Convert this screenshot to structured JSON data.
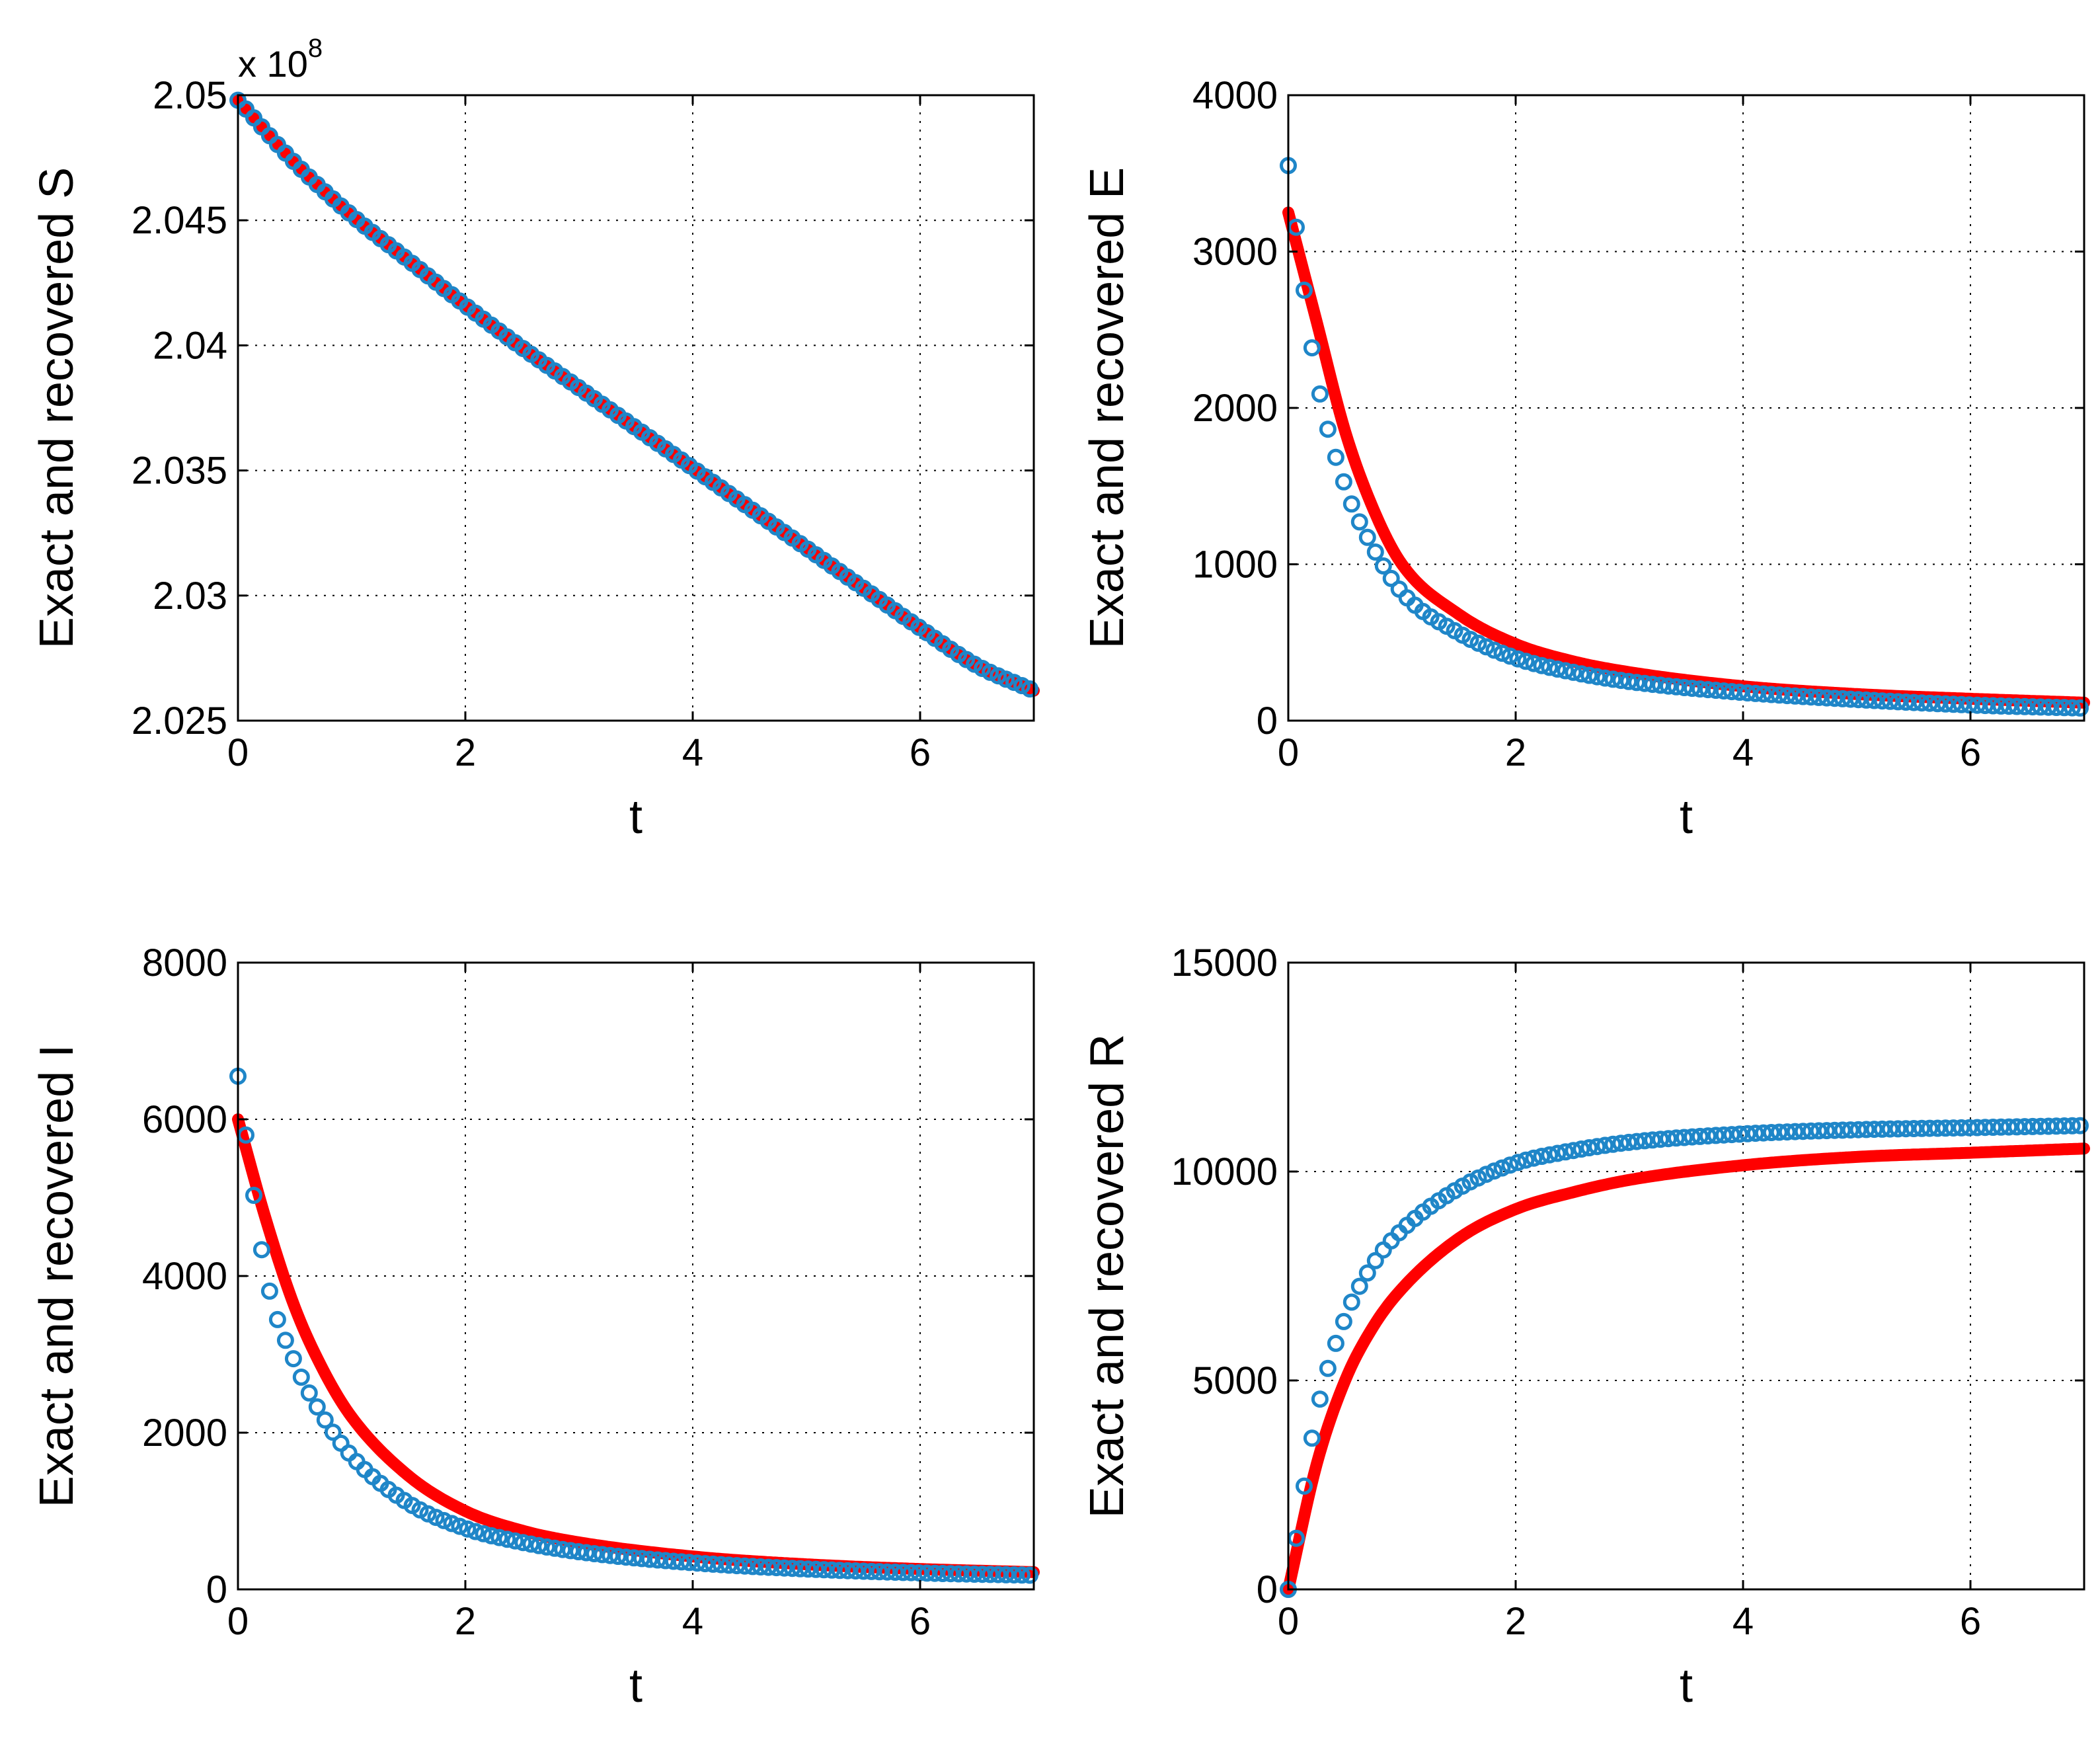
{
  "figure": {
    "background": "#ffffff"
  },
  "colors": {
    "exact": "#ff0000",
    "recovered": "#1f86c8",
    "grid": "#000000",
    "axes": "#000000"
  },
  "chart_data": [
    {
      "type": "line",
      "panel": "top-left",
      "title": "",
      "xlabel": "t",
      "ylabel": "Exact and recovered S",
      "xlim": [
        0,
        7
      ],
      "ylim": [
        2.025,
        2.05
      ],
      "xticks": [
        0,
        2,
        4,
        6
      ],
      "xtick_labels": [
        "0",
        "2",
        "4",
        "6"
      ],
      "yticks": [
        2.025,
        2.03,
        2.035,
        2.04,
        2.045,
        2.05
      ],
      "ytick_labels": [
        "2.025",
        "2.03",
        "2.035",
        "2.04",
        "2.045",
        "2.05"
      ],
      "y_multiplier": {
        "base": "x 10",
        "exponent": "8"
      },
      "grid": true,
      "series": [
        {
          "name": "exact",
          "style": "line",
          "color": "#ff0000",
          "x": [
            0,
            0.5,
            1,
            1.5,
            2,
            2.5,
            3,
            3.5,
            4,
            4.5,
            5,
            5.5,
            6,
            6.5,
            7
          ],
          "y": [
            2.0498,
            2.0473,
            2.0452,
            2.0434,
            2.0416,
            2.0399,
            2.0383,
            2.0367,
            2.0351,
            2.0335,
            2.0319,
            2.0303,
            2.0287,
            2.0272,
            2.0262
          ]
        },
        {
          "name": "recovered",
          "style": "circles",
          "color": "#1f86c8",
          "x": [
            0,
            0.5,
            1,
            1.5,
            2,
            2.5,
            3,
            3.5,
            4,
            4.5,
            5,
            5.5,
            6,
            6.5,
            7
          ],
          "y": [
            2.0498,
            2.0473,
            2.0452,
            2.0434,
            2.0416,
            2.0399,
            2.0383,
            2.0367,
            2.0351,
            2.0335,
            2.0319,
            2.0303,
            2.0287,
            2.0272,
            2.0262
          ]
        }
      ]
    },
    {
      "type": "line",
      "panel": "top-right",
      "title": "",
      "xlabel": "t",
      "ylabel": "Exact and recovered E",
      "xlim": [
        0,
        7
      ],
      "ylim": [
        0,
        4000
      ],
      "xticks": [
        0,
        2,
        4,
        6
      ],
      "xtick_labels": [
        "0",
        "2",
        "4",
        "6"
      ],
      "yticks": [
        0,
        1000,
        2000,
        3000,
        4000
      ],
      "ytick_labels": [
        "0",
        "1000",
        "2000",
        "3000",
        "4000"
      ],
      "grid": true,
      "series": [
        {
          "name": "exact",
          "style": "line",
          "color": "#ff0000",
          "x": [
            0,
            0.25,
            0.5,
            0.75,
            1,
            1.5,
            2,
            2.5,
            3,
            4,
            5,
            6,
            7
          ],
          "y": [
            3250,
            2550,
            1850,
            1350,
            1000,
            680,
            490,
            380,
            310,
            220,
            170,
            140,
            115
          ]
        },
        {
          "name": "recovered",
          "style": "circles",
          "color": "#1f86c8",
          "x": [
            0,
            0.25,
            0.5,
            0.75,
            1,
            1.5,
            2,
            2.5,
            3,
            4,
            5,
            6,
            7
          ],
          "y": [
            3550,
            2200,
            1500,
            1100,
            820,
            560,
            400,
            310,
            250,
            180,
            135,
            100,
            80
          ]
        }
      ]
    },
    {
      "type": "line",
      "panel": "bottom-left",
      "title": "",
      "xlabel": "t",
      "ylabel": "Exact and recovered I",
      "xlim": [
        0,
        7
      ],
      "ylim": [
        0,
        8000
      ],
      "xticks": [
        0,
        2,
        4,
        6
      ],
      "xtick_labels": [
        "0",
        "2",
        "4",
        "6"
      ],
      "yticks": [
        0,
        2000,
        4000,
        6000,
        8000
      ],
      "ytick_labels": [
        "0",
        "2000",
        "4000",
        "6000",
        "8000"
      ],
      "grid": true,
      "series": [
        {
          "name": "exact",
          "style": "line",
          "color": "#ff0000",
          "x": [
            0,
            0.25,
            0.5,
            0.75,
            1,
            1.5,
            2,
            2.5,
            3,
            4,
            5,
            6,
            7
          ],
          "y": [
            6000,
            4700,
            3600,
            2800,
            2200,
            1450,
            1000,
            750,
            600,
            420,
            320,
            260,
            220
          ]
        },
        {
          "name": "recovered",
          "style": "circles",
          "color": "#1f86c8",
          "x": [
            0,
            0.25,
            0.5,
            0.75,
            1,
            1.5,
            2,
            2.5,
            3,
            4,
            5,
            6,
            7
          ],
          "y": [
            6550,
            4000,
            2900,
            2200,
            1700,
            1100,
            780,
            600,
            480,
            340,
            260,
            210,
            180
          ]
        }
      ]
    },
    {
      "type": "line",
      "panel": "bottom-right",
      "title": "",
      "xlabel": "t",
      "ylabel": "Exact and recovered R",
      "xlim": [
        0,
        7
      ],
      "ylim": [
        0,
        15000
      ],
      "xticks": [
        0,
        2,
        4,
        6
      ],
      "xtick_labels": [
        "0",
        "2",
        "4",
        "6"
      ],
      "yticks": [
        0,
        5000,
        10000,
        15000
      ],
      "ytick_labels": [
        "0",
        "5000",
        "10000",
        "15000"
      ],
      "grid": true,
      "series": [
        {
          "name": "exact",
          "style": "line",
          "color": "#ff0000",
          "x": [
            0,
            0.25,
            0.5,
            0.75,
            1,
            1.5,
            2,
            2.5,
            3,
            4,
            5,
            6,
            7
          ],
          "y": [
            0,
            3000,
            5000,
            6300,
            7200,
            8400,
            9100,
            9500,
            9800,
            10150,
            10350,
            10450,
            10550
          ]
        },
        {
          "name": "recovered",
          "style": "circles",
          "color": "#1f86c8",
          "x": [
            0,
            0.25,
            0.5,
            0.75,
            1,
            1.5,
            2,
            2.5,
            3,
            4,
            5,
            6,
            7
          ],
          "y": [
            0,
            4200,
            6500,
            7800,
            8600,
            9600,
            10200,
            10500,
            10700,
            10900,
            11000,
            11050,
            11100
          ]
        }
      ]
    }
  ]
}
